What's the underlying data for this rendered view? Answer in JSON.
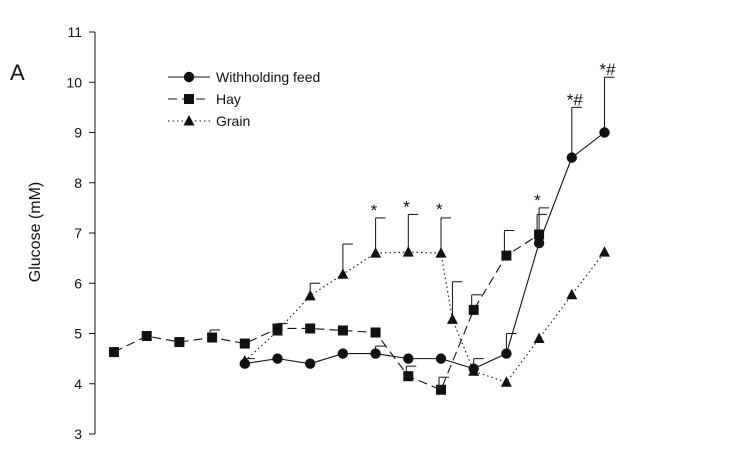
{
  "chart_data": {
    "type": "line",
    "panel_label": "A",
    "ylabel": "Glucose (mM)",
    "ylim": [
      3,
      11
    ],
    "yticks": [
      "3",
      "4",
      "5",
      "6",
      "7",
      "8",
      "9",
      "10",
      "11"
    ],
    "legend_position": "top-left",
    "grid": false,
    "x": [
      1,
      2,
      3,
      4,
      5,
      6,
      7,
      8,
      9,
      10,
      11,
      12,
      13,
      14,
      15,
      16,
      17,
      18,
      19,
      20
    ],
    "series": [
      {
        "name": "Withholding feed",
        "marker": "circle",
        "line": "solid",
        "points": [
          [
            5,
            4.4
          ],
          [
            6,
            4.5
          ],
          [
            7,
            4.4
          ],
          [
            8,
            4.6
          ],
          [
            9,
            4.6
          ],
          [
            10,
            4.5
          ],
          [
            11,
            4.5
          ],
          [
            12,
            4.3
          ],
          [
            13,
            4.6
          ],
          [
            14,
            6.8
          ],
          [
            15,
            8.5
          ],
          [
            16,
            9.0
          ]
        ],
        "errors": [
          0.1,
          0,
          0,
          0,
          0.15,
          0,
          0,
          0.2,
          0.4,
          0.7,
          1.0,
          1.1
        ]
      },
      {
        "name": "Hay",
        "marker": "square",
        "line": "dashed",
        "points": [
          [
            1,
            4.63
          ],
          [
            2,
            4.95
          ],
          [
            3,
            4.83
          ],
          [
            4,
            4.92
          ],
          [
            5,
            4.8
          ],
          [
            6,
            5.1
          ],
          [
            7,
            5.1
          ],
          [
            8,
            5.06
          ],
          [
            9,
            5.02
          ],
          [
            10,
            4.15
          ],
          [
            11,
            3.88
          ],
          [
            12,
            5.47
          ],
          [
            13,
            6.55
          ],
          [
            14,
            6.97
          ]
        ],
        "errors": [
          0,
          0,
          0,
          0.15,
          0,
          0,
          0,
          0,
          0,
          0.2,
          0.25,
          0.3,
          0.5,
          0.4
        ],
        "x_offset": -2
      },
      {
        "name": "Grain",
        "marker": "triangle",
        "line": "dotted",
        "points": [
          [
            5,
            4.45
          ],
          [
            6,
            5.05
          ],
          [
            7,
            5.75
          ],
          [
            8,
            6.18
          ],
          [
            9,
            6.6
          ],
          [
            10,
            6.62
          ],
          [
            11,
            6.6
          ],
          [
            11.35,
            5.28
          ],
          [
            12,
            4.25
          ],
          [
            13,
            4.03
          ],
          [
            14,
            4.9
          ],
          [
            15,
            5.77
          ],
          [
            16,
            6.62
          ]
        ],
        "errors": [
          0,
          0.15,
          0.25,
          0.6,
          0.7,
          0.75,
          0.7,
          0.75,
          0,
          0,
          0,
          0,
          0
        ]
      }
    ],
    "annotations": [
      {
        "text": "*",
        "x": 9,
        "y": 7.3
      },
      {
        "text": "*",
        "x": 10,
        "y": 7.37
      },
      {
        "text": "*",
        "x": 11,
        "y": 7.32
      },
      {
        "text": "*",
        "x": 14,
        "y": 7.5
      },
      {
        "text": "*#",
        "x": 15,
        "y": 9.5
      },
      {
        "text": "*#",
        "x": 16,
        "y": 10.1
      }
    ]
  }
}
